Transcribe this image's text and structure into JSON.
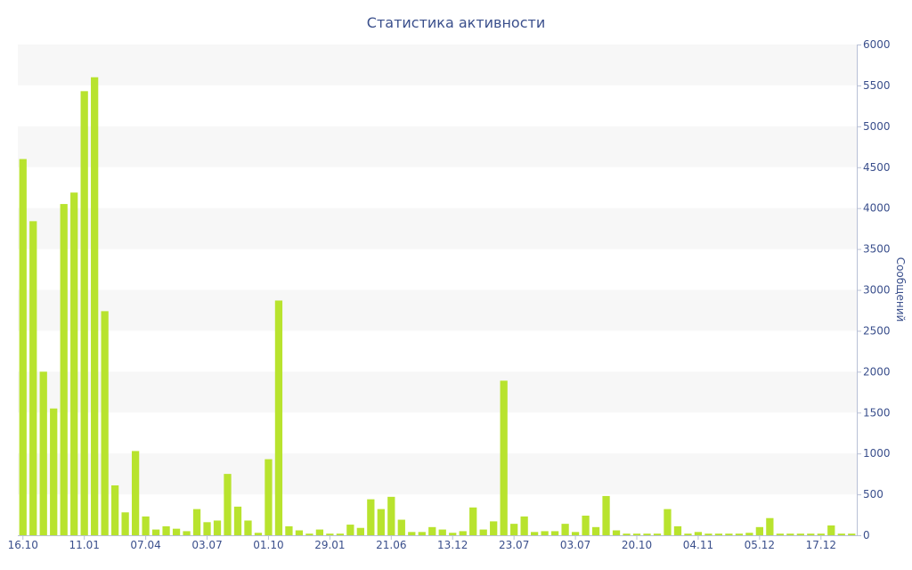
{
  "chart_data": {
    "type": "bar",
    "title": "Статистика активности",
    "ylabel": "Сообщений",
    "xlabel": "",
    "ylim": [
      0,
      6000
    ],
    "y_ticks": [
      0,
      500,
      1000,
      1500,
      2000,
      2500,
      3000,
      3500,
      4000,
      4500,
      5000,
      5500,
      6000
    ],
    "x_tick_labels": [
      "16.10",
      "11.01",
      "07.04",
      "03.07",
      "01.10",
      "29.01",
      "21.06",
      "13.12",
      "23.07",
      "03.07",
      "20.10",
      "04.11",
      "05.12",
      "17.12"
    ],
    "x_tick_bar_index": [
      0,
      6,
      12,
      18,
      24,
      30,
      36,
      42,
      48,
      54,
      60,
      66,
      72,
      78
    ],
    "grid": "alternating horizontal bands",
    "y_axis_side": "right",
    "bar_color": "#b8e32e",
    "text_color": "#3a4f8c",
    "values": [
      4600,
      3840,
      2000,
      1550,
      4050,
      4190,
      5430,
      5600,
      2740,
      610,
      280,
      1030,
      230,
      70,
      110,
      80,
      50,
      320,
      160,
      180,
      750,
      350,
      180,
      30,
      930,
      2870,
      110,
      60,
      20,
      70,
      20,
      20,
      130,
      90,
      440,
      320,
      470,
      190,
      40,
      40,
      100,
      70,
      30,
      50,
      340,
      70,
      170,
      1890,
      140,
      230,
      40,
      50,
      50,
      140,
      40,
      240,
      100,
      480,
      60,
      20,
      20,
      20,
      20,
      320,
      110,
      20,
      40,
      20,
      20,
      20,
      20,
      30,
      100,
      210,
      20,
      20,
      20,
      20,
      20,
      120,
      20,
      20
    ]
  }
}
